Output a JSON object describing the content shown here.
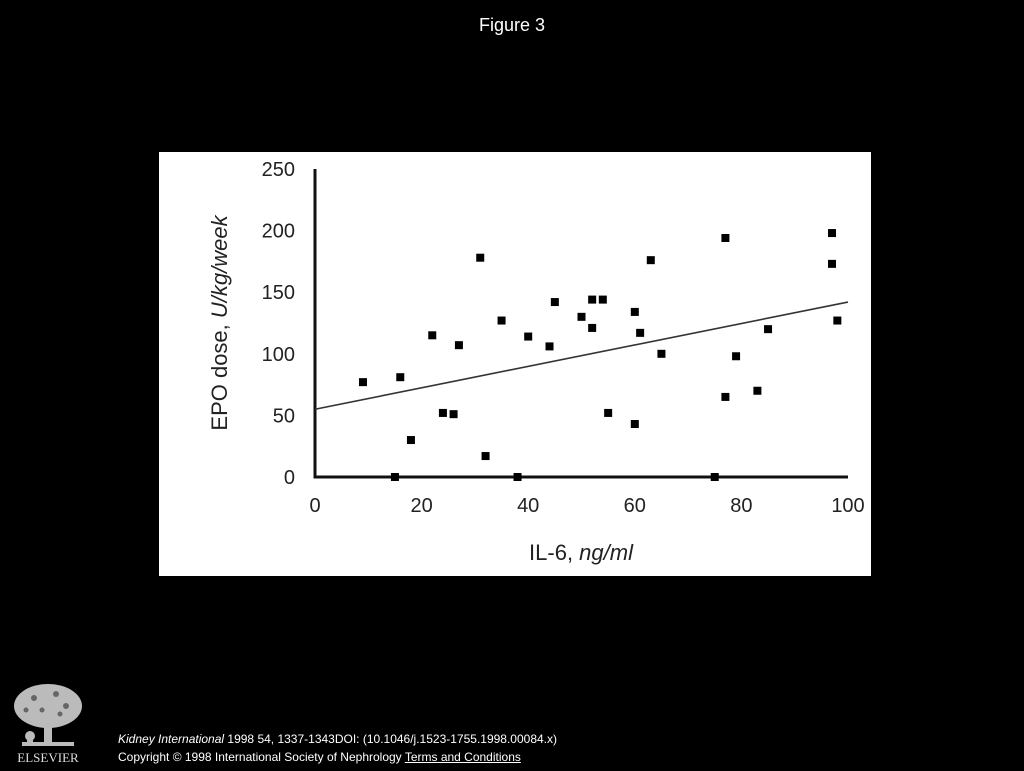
{
  "page": {
    "figure_title": "Figure 3"
  },
  "chart_data": {
    "type": "scatter",
    "xlabel_main": "IL-6, ",
    "xlabel_unit": "ng/ml",
    "ylabel_main": "EPO dose, ",
    "ylabel_unit": "U/kg/week",
    "xlim": [
      0,
      100
    ],
    "ylim": [
      0,
      250
    ],
    "xticks": [
      0,
      20,
      40,
      60,
      80,
      100
    ],
    "yticks": [
      0,
      50,
      100,
      150,
      200,
      250
    ],
    "grid": false,
    "points": [
      {
        "x": 9,
        "y": 77
      },
      {
        "x": 15,
        "y": 0
      },
      {
        "x": 16,
        "y": 81
      },
      {
        "x": 18,
        "y": 30
      },
      {
        "x": 22,
        "y": 115
      },
      {
        "x": 24,
        "y": 52
      },
      {
        "x": 26,
        "y": 51
      },
      {
        "x": 27,
        "y": 107
      },
      {
        "x": 31,
        "y": 178
      },
      {
        "x": 32,
        "y": 17
      },
      {
        "x": 35,
        "y": 127
      },
      {
        "x": 38,
        "y": 0
      },
      {
        "x": 40,
        "y": 114
      },
      {
        "x": 44,
        "y": 106
      },
      {
        "x": 45,
        "y": 142
      },
      {
        "x": 50,
        "y": 130
      },
      {
        "x": 52,
        "y": 144
      },
      {
        "x": 52,
        "y": 121
      },
      {
        "x": 54,
        "y": 144
      },
      {
        "x": 55,
        "y": 52
      },
      {
        "x": 60,
        "y": 134
      },
      {
        "x": 60,
        "y": 43
      },
      {
        "x": 61,
        "y": 117
      },
      {
        "x": 63,
        "y": 176
      },
      {
        "x": 65,
        "y": 100
      },
      {
        "x": 75,
        "y": 0
      },
      {
        "x": 77,
        "y": 194
      },
      {
        "x": 77,
        "y": 65
      },
      {
        "x": 79,
        "y": 98
      },
      {
        "x": 83,
        "y": 70
      },
      {
        "x": 85,
        "y": 120
      },
      {
        "x": 97,
        "y": 198
      },
      {
        "x": 97,
        "y": 173
      },
      {
        "x": 98,
        "y": 127
      }
    ],
    "regression_line": {
      "x": [
        0,
        100
      ],
      "y": [
        55,
        142
      ]
    }
  },
  "footer": {
    "journal": "Kidney International",
    "citation": " 1998 54, 1337-1343DOI: (10.1046/j.1523-1755.1998.00084.x)",
    "copyright": "Copyright © 1998 International Society of Nephrology",
    "terms_link": "Terms and Conditions",
    "logo_text": "ELSEVIER"
  }
}
